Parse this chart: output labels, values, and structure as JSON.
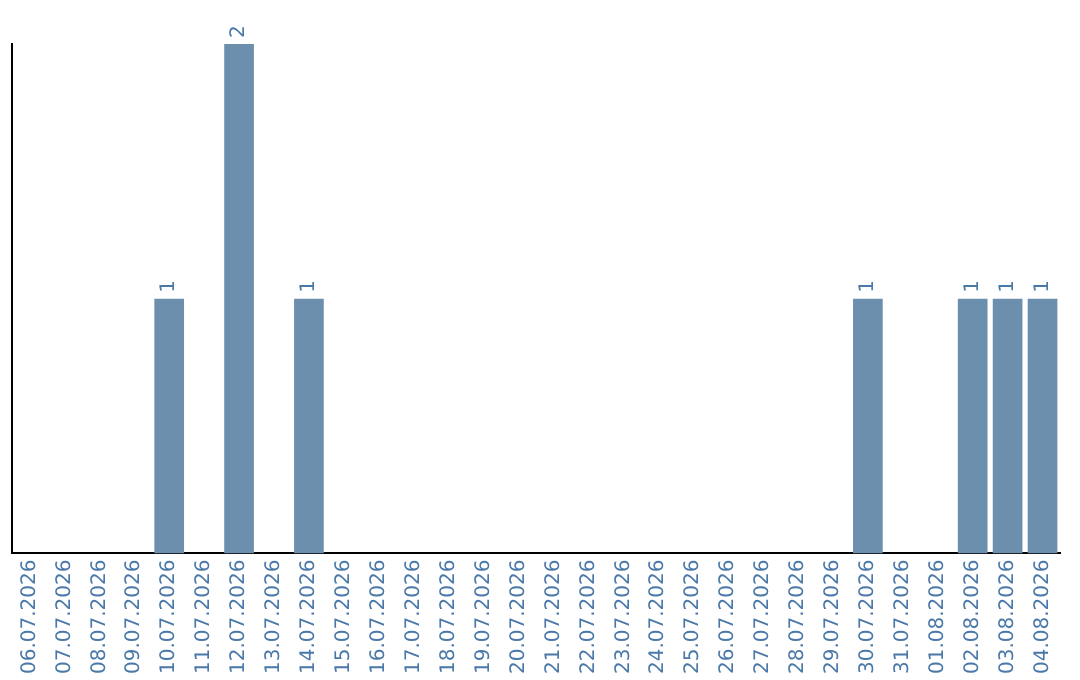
{
  "chart_data": {
    "type": "bar",
    "categories": [
      "06.07.2026",
      "07.07.2026",
      "08.07.2026",
      "09.07.2026",
      "10.07.2026",
      "11.07.2026",
      "12.07.2026",
      "13.07.2026",
      "14.07.2026",
      "15.07.2026",
      "16.07.2026",
      "17.07.2026",
      "18.07.2026",
      "19.07.2026",
      "20.07.2026",
      "21.07.2026",
      "22.07.2026",
      "23.07.2026",
      "24.07.2026",
      "25.07.2026",
      "26.07.2026",
      "27.07.2026",
      "28.07.2026",
      "29.07.2026",
      "30.07.2026",
      "31.07.2026",
      "01.08.2026",
      "02.08.2026",
      "03.08.2026",
      "04.08.2026"
    ],
    "values": [
      0,
      0,
      0,
      0,
      1,
      0,
      2,
      0,
      1,
      0,
      0,
      0,
      0,
      0,
      0,
      0,
      0,
      0,
      0,
      0,
      0,
      0,
      0,
      0,
      1,
      0,
      0,
      1,
      1,
      1
    ],
    "value_labels": [
      null,
      null,
      null,
      null,
      "1",
      null,
      "2",
      null,
      "1",
      null,
      null,
      null,
      null,
      null,
      null,
      null,
      null,
      null,
      null,
      null,
      null,
      null,
      null,
      null,
      "1",
      null,
      null,
      "1",
      "1",
      "1"
    ],
    "color": "#6d8fae",
    "tick_labels": "x",
    "grid": false,
    "legend": false
  }
}
